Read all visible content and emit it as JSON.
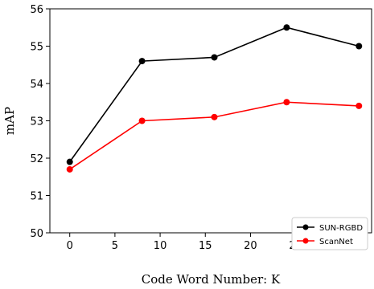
{
  "chart_data": {
    "type": "line",
    "title": "",
    "xlabel": "Code Word Number: K",
    "ylabel": "mAP",
    "x": [
      0,
      8,
      16,
      24,
      32
    ],
    "xlim": [
      -2.2,
      33.4
    ],
    "ylim": [
      50,
      56
    ],
    "xticks": [
      0,
      5,
      10,
      15,
      20,
      25,
      30
    ],
    "yticks": [
      50,
      51,
      52,
      53,
      54,
      55,
      56
    ],
    "series": [
      {
        "name": "SUN-RGBD",
        "color": "#000000",
        "marker": "circle",
        "values": [
          51.9,
          54.6,
          54.7,
          55.5,
          55.0
        ]
      },
      {
        "name": "ScanNet",
        "color": "#ff0000",
        "marker": "circle",
        "values": [
          51.7,
          53.0,
          53.1,
          53.5,
          53.4
        ]
      }
    ],
    "legend": "bottom-right",
    "grid": false
  }
}
